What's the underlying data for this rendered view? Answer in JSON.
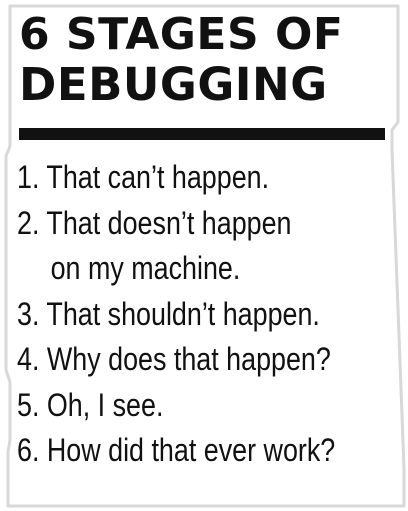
{
  "title": {
    "line1": "6 STAGES OF",
    "line2": "DEBUGGING"
  },
  "stages": [
    "1. That can’t happen.",
    "2. That doesn’t happen",
    "on my machine.",
    "3. That shouldn’t happen.",
    "4. Why does that happen?",
    "5. Oh, I see.",
    "6. How did that ever work?"
  ],
  "colors": {
    "text": "#111111",
    "sticker": "#ffffff",
    "outline": "#d8d8d8"
  }
}
